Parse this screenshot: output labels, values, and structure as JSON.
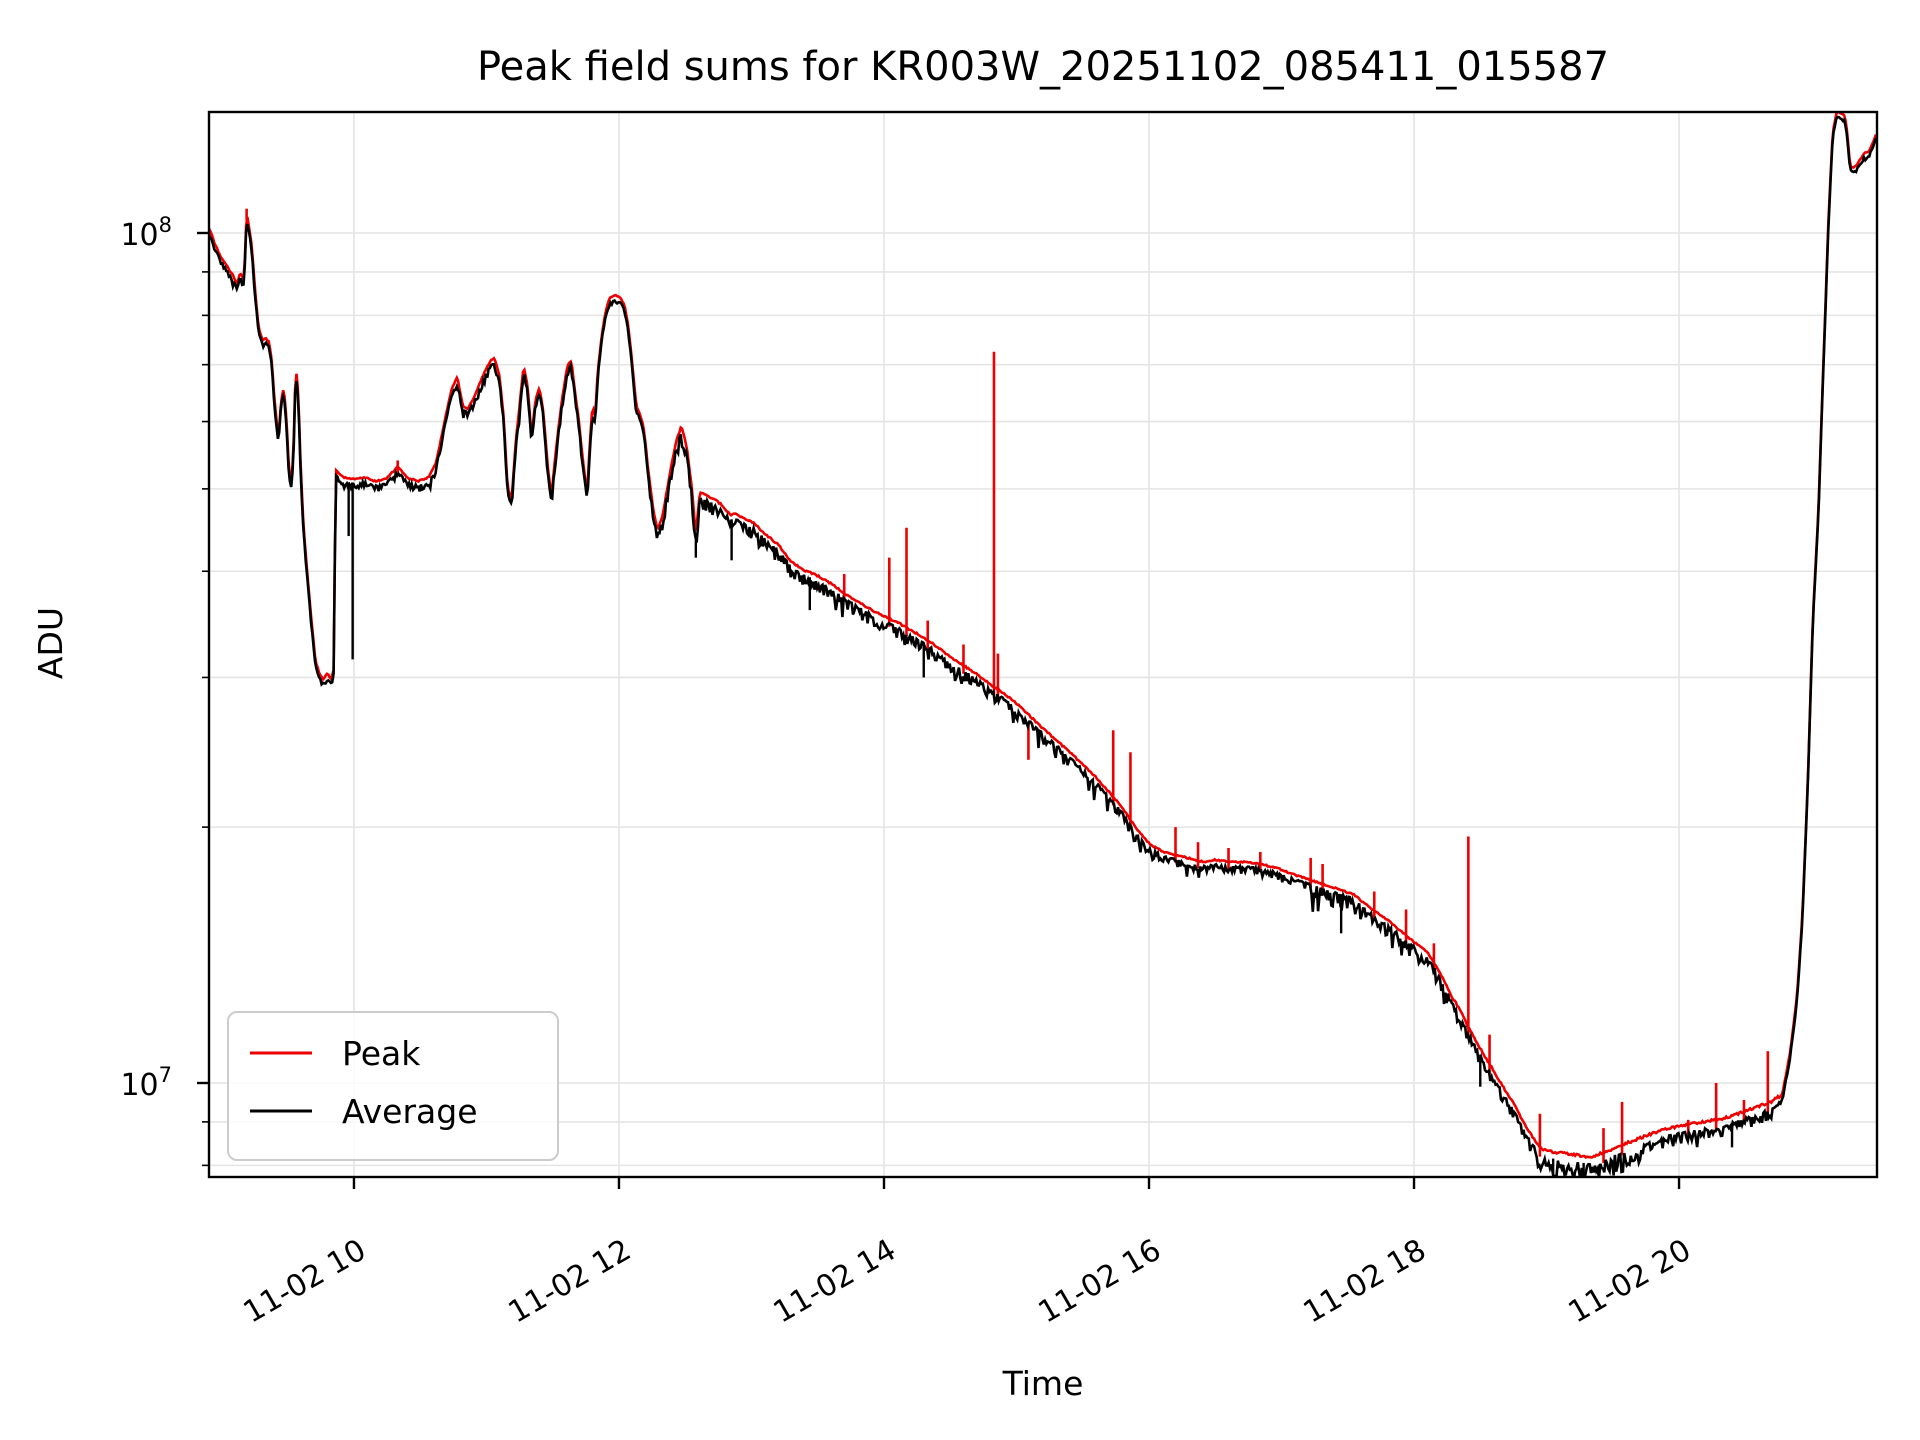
{
  "chart_data": {
    "type": "line",
    "title": "Peak field sums for KR003W_20251102_085411_015587",
    "xlabel": "Time",
    "ylabel": "ADU",
    "grid": true,
    "y_scale": "log",
    "xlim_hours": [
      8.906,
      21.494
    ],
    "ylim": [
      7730000.0,
      138700000.0
    ],
    "x_axis": {
      "ticks": [
        {
          "label": "11-02 10",
          "t": 10
        },
        {
          "label": "11-02 12",
          "t": 12
        },
        {
          "label": "11-02 14",
          "t": 14
        },
        {
          "label": "11-02 16",
          "t": 16
        },
        {
          "label": "11-02 18",
          "t": 18
        },
        {
          "label": "11-02 20",
          "t": 20
        }
      ]
    },
    "y_axis": {
      "major_ticks": [
        {
          "base": "10",
          "exp": "8",
          "value": 100000000.0
        },
        {
          "base": "10",
          "exp": "7",
          "value": 10000000.0
        }
      ],
      "minor_ticks": [
        90000000.0,
        80000000.0,
        70000000.0,
        60000000.0,
        50000000.0,
        40000000.0,
        30000000.0,
        20000000.0,
        9000000.0,
        8000000.0
      ]
    },
    "legend": {
      "position": "lower left"
    },
    "series": [
      {
        "name": "Peak",
        "color": "#ee0000",
        "derived_from": "average",
        "offset_regions": [
          [
            8.9,
            12.2,
            0.013
          ],
          [
            12.2,
            16.0,
            0.015
          ],
          [
            16.0,
            18.3,
            0.013
          ],
          [
            18.3,
            18.85,
            0.02
          ],
          [
            18.85,
            20.75,
            0.022
          ],
          [
            20.75,
            21.5,
            0.012
          ]
        ],
        "spikes": [
          [
            9.19,
            106800000.0
          ],
          [
            10.33,
            54000000.0
          ],
          [
            13.7,
            39700000.0
          ],
          [
            14.04,
            41500000.0
          ],
          [
            14.17,
            45000000.0
          ],
          [
            14.33,
            35000000.0
          ],
          [
            14.6,
            32800000.0
          ],
          [
            14.83,
            72500000.0
          ],
          [
            14.86,
            32000000.0
          ],
          [
            15.09,
            24000000.0
          ],
          [
            15.73,
            26000000.0
          ],
          [
            15.86,
            24500000.0
          ],
          [
            16.2,
            20000000.0
          ],
          [
            16.37,
            19200000.0
          ],
          [
            16.6,
            18900000.0
          ],
          [
            16.84,
            18700000.0
          ],
          [
            17.22,
            18400000.0
          ],
          [
            17.31,
            18100000.0
          ],
          [
            17.7,
            16800000.0
          ],
          [
            17.94,
            16000000.0
          ],
          [
            18.15,
            14600000.0
          ],
          [
            18.41,
            19500000.0
          ],
          [
            18.57,
            11400000.0
          ],
          [
            18.95,
            9200000.0
          ],
          [
            19.43,
            8850000.0
          ],
          [
            19.57,
            9500000.0
          ],
          [
            20.07,
            9050000.0
          ],
          [
            20.28,
            10000000.0
          ],
          [
            20.49,
            9550000.0
          ],
          [
            20.67,
            10900000.0
          ]
        ]
      },
      {
        "name": "Average",
        "color": "#000000",
        "points": [
          [
            8.91,
            100000000.0
          ],
          [
            8.95,
            96000000.0
          ],
          [
            9.0,
            92500000.0
          ],
          [
            9.05,
            90000000.0
          ],
          [
            9.09,
            88000000.0
          ],
          [
            9.12,
            86000000.0
          ],
          [
            9.14,
            89000000.0
          ],
          [
            9.17,
            87000000.0
          ],
          [
            9.19,
            104500000.0
          ],
          [
            9.21,
            100000000.0
          ],
          [
            9.23,
            95500000.0
          ],
          [
            9.25,
            86000000.0
          ],
          [
            9.28,
            76500000.0
          ],
          [
            9.31,
            74000000.0
          ],
          [
            9.33,
            74500000.0
          ],
          [
            9.36,
            73500000.0
          ],
          [
            9.38,
            70000000.0
          ],
          [
            9.4,
            63000000.0
          ],
          [
            9.43,
            56500000.0
          ],
          [
            9.45,
            63000000.0
          ],
          [
            9.47,
            65000000.0
          ],
          [
            9.49,
            60000000.0
          ],
          [
            9.51,
            52000000.0
          ],
          [
            9.53,
            50000000.0
          ],
          [
            9.55,
            59000000.0
          ],
          [
            9.56,
            69000000.0
          ],
          [
            9.58,
            64000000.0
          ],
          [
            9.6,
            51500000.0
          ],
          [
            9.62,
            44500000.0
          ],
          [
            9.65,
            39000000.0
          ],
          [
            9.68,
            34500000.0
          ],
          [
            9.71,
            31000000.0
          ],
          [
            9.74,
            30000000.0
          ],
          [
            9.77,
            29500000.0
          ],
          [
            9.8,
            30000000.0
          ],
          [
            9.83,
            29500000.0
          ],
          [
            9.85,
            30500000.0
          ],
          [
            9.86,
            52000000.0
          ],
          [
            9.92,
            51000000.0
          ],
          [
            10.0,
            50800000.0
          ],
          [
            10.08,
            51000000.0
          ],
          [
            10.16,
            50500000.0
          ],
          [
            10.24,
            50800000.0
          ],
          [
            10.33,
            52500000.0
          ],
          [
            10.4,
            51000000.0
          ],
          [
            10.48,
            50500000.0
          ],
          [
            10.56,
            51000000.0
          ],
          [
            10.62,
            53000000.0
          ],
          [
            10.68,
            59000000.0
          ],
          [
            10.74,
            65000000.0
          ],
          [
            10.78,
            67000000.0
          ],
          [
            10.82,
            62000000.0
          ],
          [
            10.86,
            61500000.0
          ],
          [
            10.91,
            63500000.0
          ],
          [
            10.97,
            67000000.0
          ],
          [
            11.03,
            70000000.0
          ],
          [
            11.06,
            70500000.0
          ],
          [
            11.1,
            67000000.0
          ],
          [
            11.13,
            60000000.0
          ],
          [
            11.16,
            49500000.0
          ],
          [
            11.19,
            48000000.0
          ],
          [
            11.22,
            56000000.0
          ],
          [
            11.25,
            62000000.0
          ],
          [
            11.28,
            69000000.0
          ],
          [
            11.31,
            65500000.0
          ],
          [
            11.34,
            57000000.0
          ],
          [
            11.37,
            63000000.0
          ],
          [
            11.4,
            65000000.0
          ],
          [
            11.43,
            61000000.0
          ],
          [
            11.46,
            53000000.0
          ],
          [
            11.49,
            48500000.0
          ],
          [
            11.53,
            56000000.0
          ],
          [
            11.57,
            63000000.0
          ],
          [
            11.61,
            69000000.0
          ],
          [
            11.64,
            70000000.0
          ],
          [
            11.67,
            64000000.0
          ],
          [
            11.7,
            59000000.0
          ],
          [
            11.73,
            53000000.0
          ],
          [
            11.76,
            49000000.0
          ],
          [
            11.78,
            56000000.0
          ],
          [
            11.8,
            62000000.0
          ],
          [
            11.82,
            60000000.0
          ],
          [
            11.84,
            68000000.0
          ],
          [
            11.87,
            75000000.0
          ],
          [
            11.9,
            80000000.0
          ],
          [
            11.93,
            83000000.0
          ],
          [
            11.97,
            83500000.0
          ],
          [
            12.01,
            83000000.0
          ],
          [
            12.04,
            81500000.0
          ],
          [
            12.07,
            77000000.0
          ],
          [
            12.1,
            69500000.0
          ],
          [
            12.13,
            62000000.0
          ],
          [
            12.16,
            60500000.0
          ],
          [
            12.19,
            58000000.0
          ],
          [
            12.22,
            52000000.0
          ],
          [
            12.26,
            46500000.0
          ],
          [
            12.29,
            44200000.0
          ],
          [
            12.33,
            46000000.0
          ],
          [
            12.38,
            51000000.0
          ],
          [
            12.43,
            56000000.0
          ],
          [
            12.47,
            58500000.0
          ],
          [
            12.51,
            55500000.0
          ],
          [
            12.55,
            49500000.0
          ],
          [
            12.58,
            43500000.0
          ],
          [
            12.61,
            49000000.0
          ],
          [
            12.66,
            48500000.0
          ],
          [
            12.72,
            48000000.0
          ],
          [
            12.78,
            47200000.0
          ],
          [
            12.84,
            46000000.0
          ],
          [
            12.88,
            46200000.0
          ],
          [
            12.95,
            45500000.0
          ],
          [
            13.02,
            45000000.0
          ],
          [
            13.1,
            43700000.0
          ],
          [
            13.2,
            42500000.0
          ],
          [
            13.3,
            40500000.0
          ],
          [
            13.4,
            39600000.0
          ],
          [
            13.5,
            39000000.0
          ],
          [
            13.6,
            38200000.0
          ],
          [
            13.7,
            37200000.0
          ],
          [
            13.8,
            36400000.0
          ],
          [
            13.9,
            35600000.0
          ],
          [
            14.0,
            35000000.0
          ],
          [
            14.1,
            34400000.0
          ],
          [
            14.2,
            33700000.0
          ],
          [
            14.3,
            33000000.0
          ],
          [
            14.4,
            32200000.0
          ],
          [
            14.5,
            31300000.0
          ],
          [
            14.6,
            30600000.0
          ],
          [
            14.7,
            29900000.0
          ],
          [
            14.8,
            29100000.0
          ],
          [
            14.9,
            28400000.0
          ],
          [
            15.0,
            27600000.0
          ],
          [
            15.1,
            26700000.0
          ],
          [
            15.2,
            25800000.0
          ],
          [
            15.3,
            25000000.0
          ],
          [
            15.4,
            24200000.0
          ],
          [
            15.5,
            23400000.0
          ],
          [
            15.6,
            22600000.0
          ],
          [
            15.7,
            21700000.0
          ],
          [
            15.8,
            20800000.0
          ],
          [
            15.9,
            19700000.0
          ],
          [
            16.0,
            18900000.0
          ],
          [
            16.11,
            18500000.0
          ],
          [
            16.23,
            18300000.0
          ],
          [
            16.41,
            18000000.0
          ],
          [
            16.5,
            18100000.0
          ],
          [
            16.62,
            18000000.0
          ],
          [
            16.71,
            18000000.0
          ],
          [
            16.84,
            17900000.0
          ],
          [
            16.97,
            17700000.0
          ],
          [
            17.09,
            17400000.0
          ],
          [
            17.24,
            17100000.0
          ],
          [
            17.39,
            16800000.0
          ],
          [
            17.54,
            16500000.0
          ],
          [
            17.69,
            15800000.0
          ],
          [
            17.82,
            15300000.0
          ],
          [
            17.95,
            14700000.0
          ],
          [
            18.1,
            14100000.0
          ],
          [
            18.2,
            13300000.0
          ],
          [
            18.33,
            12100000.0
          ],
          [
            18.47,
            11000000.0
          ],
          [
            18.61,
            10100000.0
          ],
          [
            18.75,
            9300000.0
          ],
          [
            18.89,
            8500000.0
          ],
          [
            18.97,
            8200000.0
          ],
          [
            19.08,
            8130000.0
          ],
          [
            19.2,
            8090000.0
          ],
          [
            19.33,
            8030000.0
          ],
          [
            19.45,
            8150000.0
          ],
          [
            19.57,
            8300000.0
          ],
          [
            19.7,
            8450000.0
          ],
          [
            19.83,
            8600000.0
          ],
          [
            19.95,
            8700000.0
          ],
          [
            20.08,
            8780000.0
          ],
          [
            20.21,
            8850000.0
          ],
          [
            20.34,
            8920000.0
          ],
          [
            20.46,
            9050000.0
          ],
          [
            20.59,
            9200000.0
          ],
          [
            20.71,
            9350000.0
          ],
          [
            20.78,
            9600000.0
          ],
          [
            20.84,
            10800000.0
          ],
          [
            20.89,
            12500000.0
          ],
          [
            20.93,
            15500000.0
          ],
          [
            20.97,
            22000000.0
          ],
          [
            21.01,
            35000000.0
          ],
          [
            21.05,
            46000000.0
          ],
          [
            21.09,
            70000000.0
          ],
          [
            21.13,
            105000000.0
          ],
          [
            21.16,
            130000000.0
          ],
          [
            21.19,
            137500000.0
          ],
          [
            21.22,
            137000000.0
          ],
          [
            21.25,
            136000000.0
          ],
          [
            21.27,
            130000000.0
          ],
          [
            21.29,
            119000000.0
          ],
          [
            21.31,
            118000000.0
          ],
          [
            21.34,
            119000000.0
          ],
          [
            21.37,
            121000000.0
          ],
          [
            21.4,
            123000000.0
          ],
          [
            21.43,
            123500000.0
          ],
          [
            21.46,
            126000000.0
          ],
          [
            21.49,
            130000000.0
          ]
        ],
        "down_spikes": [
          [
            9.96,
            44000000.0
          ],
          [
            9.99,
            31500000.0
          ],
          [
            12.58,
            41500000.0
          ],
          [
            12.85,
            41200000.0
          ],
          [
            13.44,
            36000000.0
          ],
          [
            14.3,
            30000000.0
          ],
          [
            17.45,
            15000000.0
          ],
          [
            18.5,
            9900000.0
          ],
          [
            19.05,
            7750000.0
          ],
          [
            19.28,
            7720000.0
          ],
          [
            20.4,
            8400000.0
          ]
        ],
        "noise_regions": [
          [
            8.9,
            9.9,
            0.012
          ],
          [
            9.9,
            11.85,
            0.018
          ],
          [
            11.85,
            12.2,
            0.01
          ],
          [
            12.2,
            13.1,
            0.035
          ],
          [
            13.1,
            15.9,
            0.03
          ],
          [
            15.9,
            17.2,
            0.022
          ],
          [
            17.2,
            18.35,
            0.04
          ],
          [
            18.35,
            18.85,
            0.028
          ],
          [
            18.85,
            19.75,
            0.05
          ],
          [
            19.75,
            20.75,
            0.032
          ],
          [
            20.75,
            21.5,
            0.008
          ]
        ]
      }
    ]
  },
  "colors": {
    "grid": "#e4e4e4",
    "spine": "#000000",
    "legend_border": "#cccccc"
  }
}
